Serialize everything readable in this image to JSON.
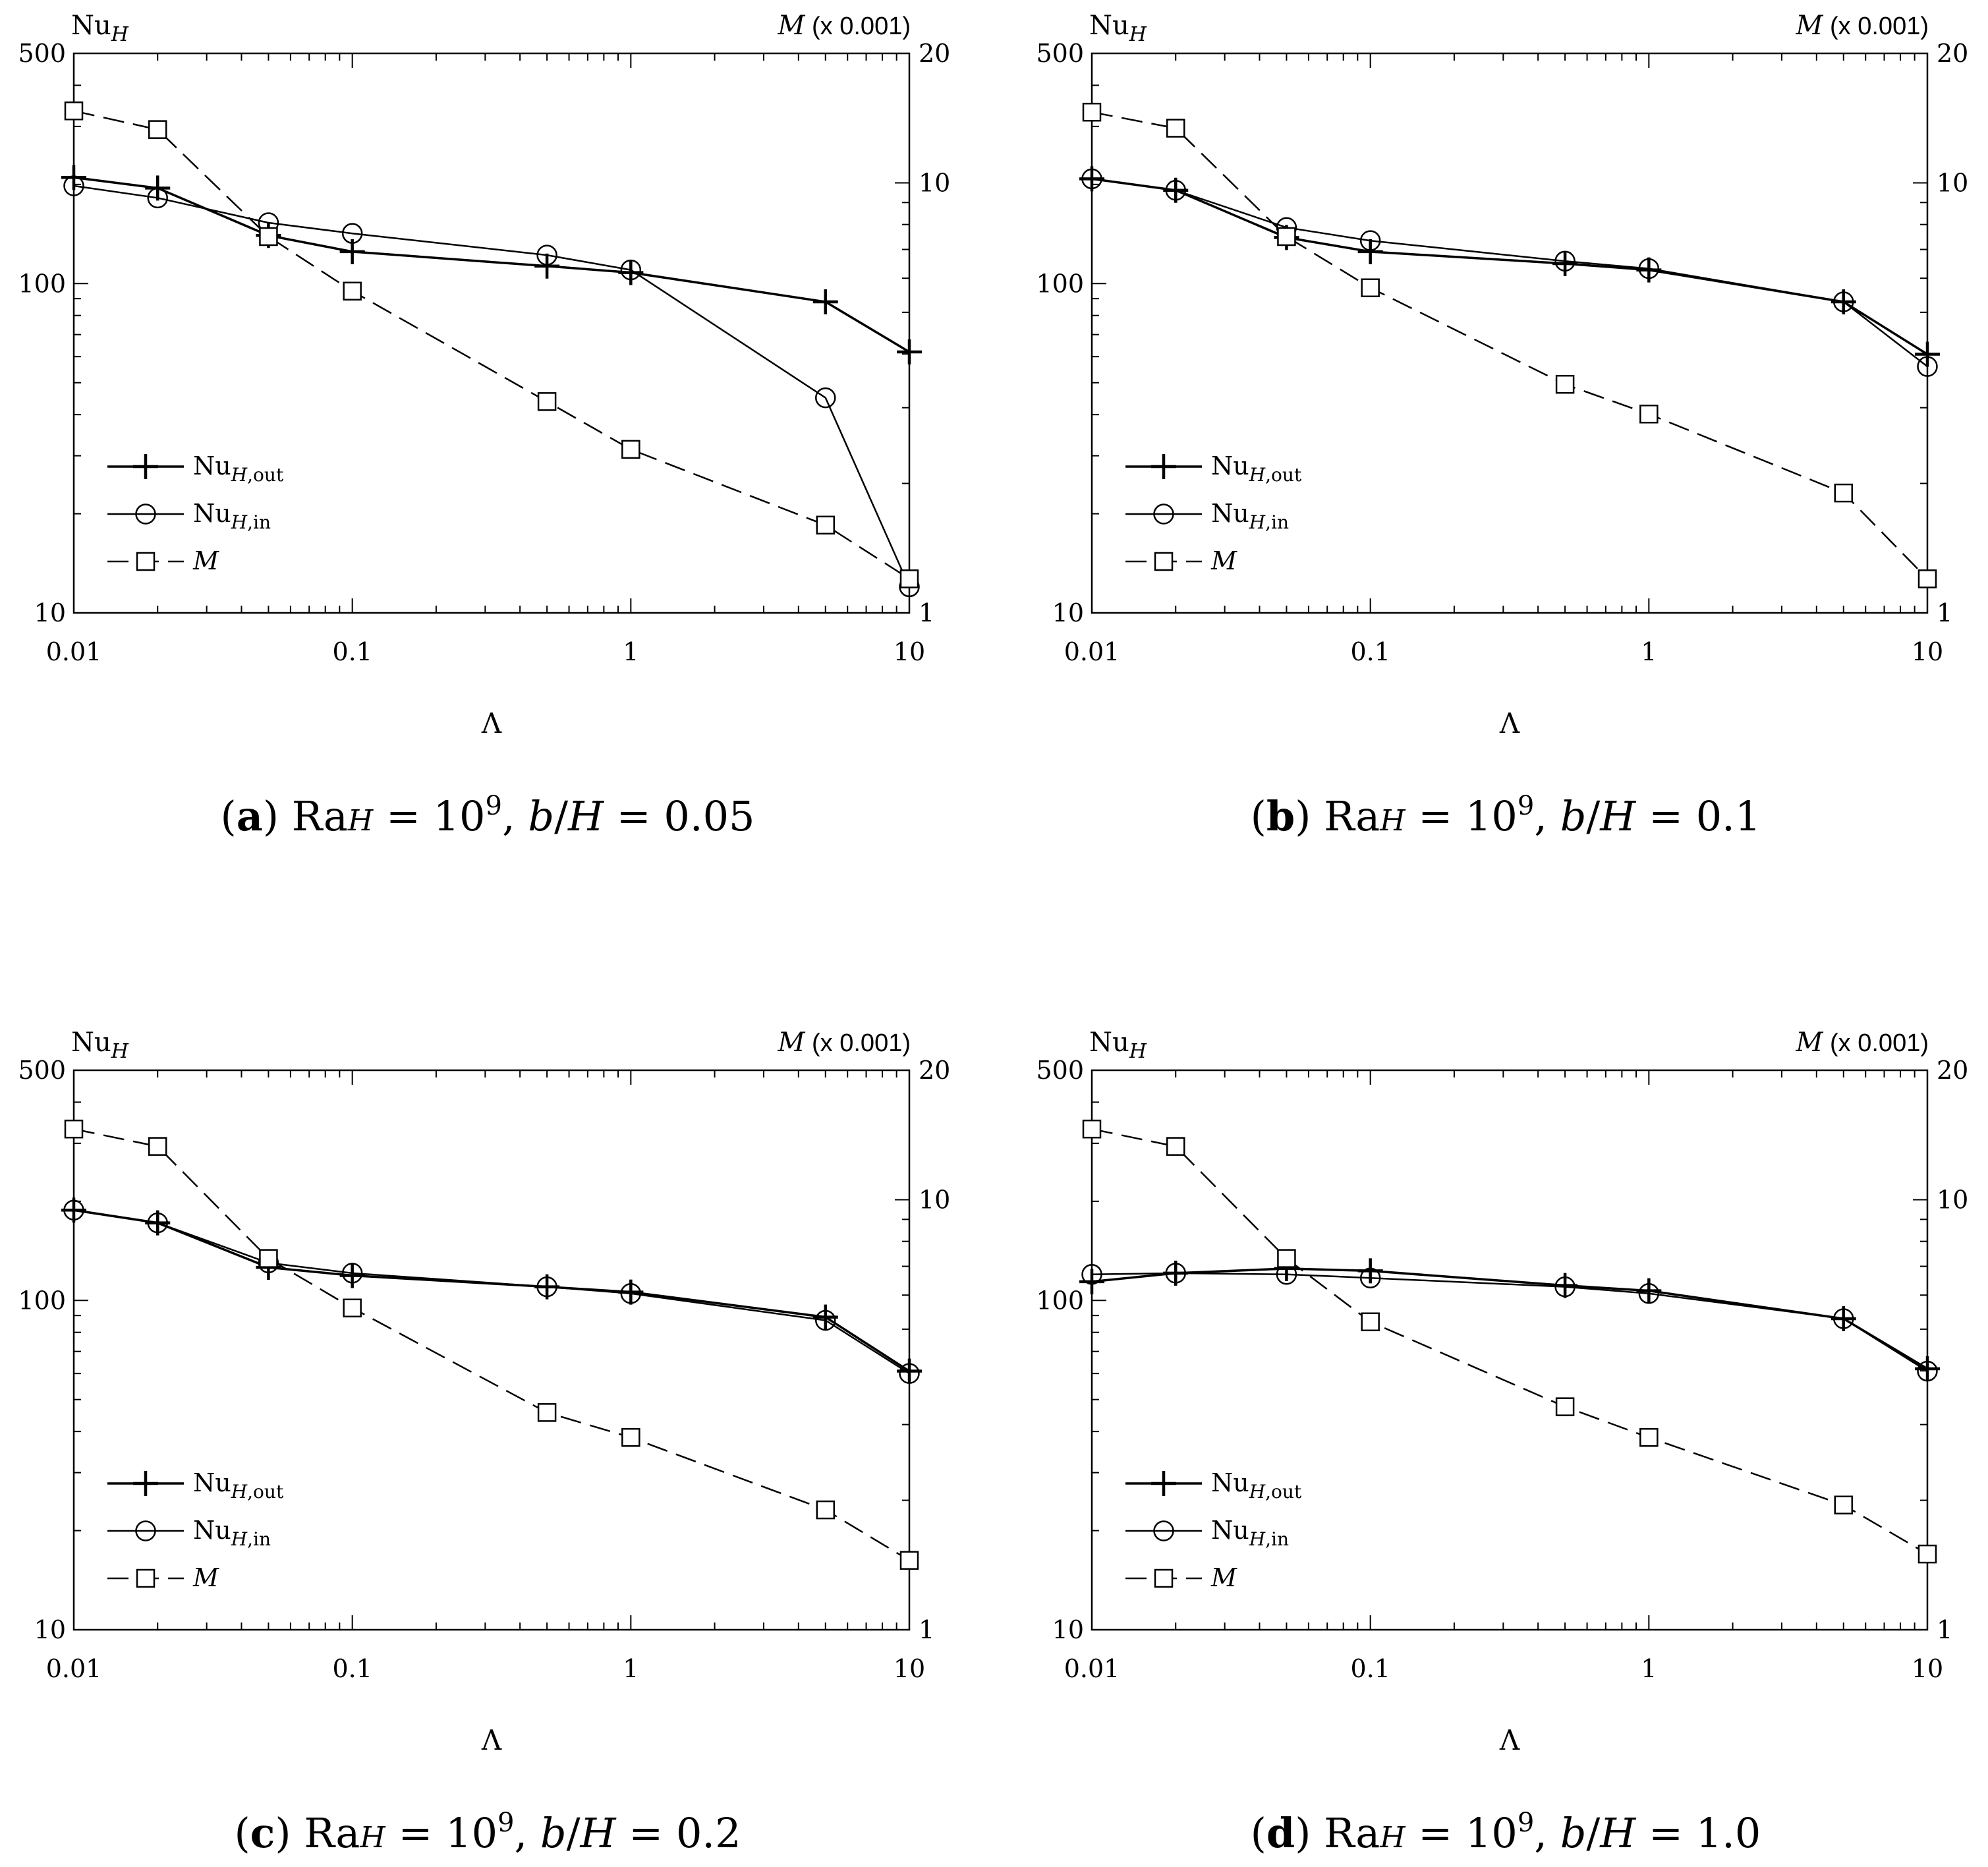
{
  "figure": {
    "x_axis_symbol": "Λ",
    "left_axis_label": "Nu",
    "left_axis_sub": "H",
    "right_axis_symbol": "M",
    "right_axis_unit": " (x 0.001)",
    "legend": [
      {
        "base": "Nu",
        "sub": "H",
        "sub2": ",out",
        "italic": false
      },
      {
        "base": "Nu",
        "sub": "H",
        "sub2": ",in",
        "italic": false
      },
      {
        "base": "M",
        "sub": "",
        "sub2": "",
        "italic": true
      }
    ]
  },
  "chart_data": [
    {
      "type": "line",
      "panel": "a",
      "caption": {
        "letter": "a",
        "ra": "Ra",
        "ra_sub": "H",
        "eq1": " = 10",
        "exp": "9",
        "comma": ", ",
        "b": "b",
        "slash": "/",
        "h": "H",
        "eq2": " = 0.05"
      },
      "x": [
        0.01,
        0.02,
        0.05,
        0.1,
        0.5,
        1,
        5,
        10
      ],
      "xscale": "log",
      "xlim": [
        0.01,
        10
      ],
      "xticks": [
        "0.01",
        "0.1",
        "1",
        "10"
      ],
      "yscale": "log",
      "ylim": [
        10,
        500
      ],
      "yticks": [
        "10",
        "100",
        "500"
      ],
      "y2scale": "log",
      "y2lim": [
        1,
        20
      ],
      "y2ticks": [
        "1",
        "10",
        "20"
      ],
      "series": [
        {
          "name": "Nu_H,out",
          "axis": "left",
          "marker": "plus",
          "dash": "solid",
          "values": [
            210,
            195,
            140,
            125,
            113,
            108,
            88,
            62
          ]
        },
        {
          "name": "Nu_H,in",
          "axis": "left",
          "marker": "circle",
          "dash": "solid",
          "values": [
            198,
            182,
            153,
            142,
            122,
            110,
            45,
            12
          ]
        },
        {
          "name": "M",
          "axis": "right",
          "marker": "square",
          "dash": "dashed",
          "values": [
            14.7,
            13.3,
            7.5,
            5.6,
            3.1,
            2.4,
            1.6,
            1.2
          ]
        }
      ]
    },
    {
      "type": "line",
      "panel": "b",
      "caption": {
        "letter": "b",
        "ra": "Ra",
        "ra_sub": "H",
        "eq1": " = 10",
        "exp": "9",
        "comma": ", ",
        "b": "b",
        "slash": "/",
        "h": "H",
        "eq2": " = 0.1"
      },
      "x": [
        0.01,
        0.02,
        0.05,
        0.1,
        0.5,
        1,
        5,
        10
      ],
      "xscale": "log",
      "xlim": [
        0.01,
        10
      ],
      "xticks": [
        "0.01",
        "0.1",
        "1",
        "10"
      ],
      "yscale": "log",
      "ylim": [
        10,
        500
      ],
      "yticks": [
        "10",
        "100",
        "500"
      ],
      "y2scale": "log",
      "y2lim": [
        1,
        20
      ],
      "y2ticks": [
        "1",
        "10",
        "20"
      ],
      "series": [
        {
          "name": "Nu_H,out",
          "axis": "left",
          "marker": "plus",
          "dash": "solid",
          "values": [
            208,
            192,
            138,
            125,
            115,
            110,
            88,
            61
          ]
        },
        {
          "name": "Nu_H,in",
          "axis": "left",
          "marker": "circle",
          "dash": "solid",
          "values": [
            208,
            192,
            148,
            135,
            117,
            111,
            88,
            56
          ]
        },
        {
          "name": "M",
          "axis": "right",
          "marker": "square",
          "dash": "dashed",
          "values": [
            14.6,
            13.4,
            7.5,
            5.7,
            3.4,
            2.9,
            1.9,
            1.2
          ]
        }
      ]
    },
    {
      "type": "line",
      "panel": "c",
      "caption": {
        "letter": "c",
        "ra": "Ra",
        "ra_sub": "H",
        "eq1": " = 10",
        "exp": "9",
        "comma": ", ",
        "b": "b",
        "slash": "/",
        "h": "H",
        "eq2": " = 0.2"
      },
      "x": [
        0.01,
        0.02,
        0.05,
        0.1,
        0.5,
        1,
        5,
        10
      ],
      "xscale": "log",
      "xlim": [
        0.01,
        10
      ],
      "xticks": [
        "0.01",
        "0.1",
        "1",
        "10"
      ],
      "yscale": "log",
      "ylim": [
        10,
        500
      ],
      "yticks": [
        "10",
        "100",
        "500"
      ],
      "y2scale": "log",
      "y2lim": [
        1,
        20
      ],
      "y2ticks": [
        "1",
        "10",
        "20"
      ],
      "series": [
        {
          "name": "Nu_H,out",
          "axis": "left",
          "marker": "plus",
          "dash": "solid",
          "values": [
            188,
            172,
            126,
            119,
            110,
            106,
            89,
            61
          ]
        },
        {
          "name": "Nu_H,in",
          "axis": "left",
          "marker": "circle",
          "dash": "solid",
          "values": [
            188,
            172,
            130,
            121,
            110,
            105,
            87,
            60
          ]
        },
        {
          "name": "M",
          "axis": "right",
          "marker": "square",
          "dash": "dashed",
          "values": [
            14.6,
            13.3,
            7.3,
            5.6,
            3.2,
            2.8,
            1.9,
            1.45
          ]
        }
      ]
    },
    {
      "type": "line",
      "panel": "d",
      "caption": {
        "letter": "d",
        "ra": "Ra",
        "ra_sub": "H",
        "eq1": " = 10",
        "exp": "9",
        "comma": ", ",
        "b": "b",
        "slash": "/",
        "h": "H",
        "eq2": " = 1.0"
      },
      "x": [
        0.01,
        0.02,
        0.05,
        0.1,
        0.5,
        1,
        5,
        10
      ],
      "xscale": "log",
      "xlim": [
        0.01,
        10
      ],
      "xticks": [
        "0.01",
        "0.1",
        "1",
        "10"
      ],
      "yscale": "log",
      "ylim": [
        10,
        500
      ],
      "yticks": [
        "10",
        "100",
        "500"
      ],
      "y2scale": "log",
      "y2lim": [
        1,
        20
      ],
      "y2ticks": [
        "1",
        "10",
        "20"
      ],
      "series": [
        {
          "name": "Nu_H,out",
          "axis": "left",
          "marker": "plus",
          "dash": "solid",
          "values": [
            114,
            121,
            125,
            123,
            111,
            107,
            88,
            62
          ]
        },
        {
          "name": "Nu_H,in",
          "axis": "left",
          "marker": "circle",
          "dash": "solid",
          "values": [
            120,
            121,
            120,
            117,
            110,
            105,
            88,
            61
          ]
        },
        {
          "name": "M",
          "axis": "right",
          "marker": "square",
          "dash": "dashed",
          "values": [
            14.6,
            13.3,
            7.3,
            5.2,
            3.3,
            2.8,
            1.95,
            1.5
          ]
        }
      ]
    }
  ]
}
